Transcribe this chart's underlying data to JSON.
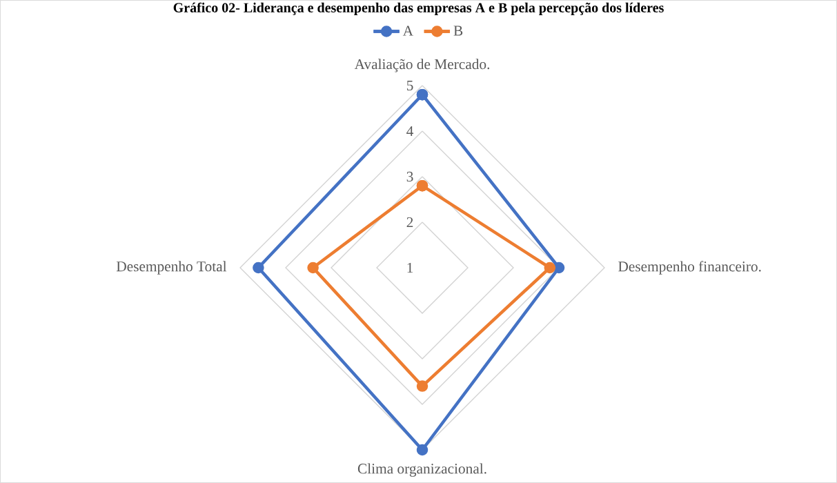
{
  "chart_data": {
    "type": "radar",
    "title": "Gráfico 02- Liderança e desempenho das empresas A e B pela percepção dos líderes",
    "categories": [
      "Avaliação de Mercado.",
      "Desempenho financeiro.",
      "Clima organizacional.",
      "Desempenho Total"
    ],
    "series": [
      {
        "name": "A",
        "color": "#4472c4",
        "values": [
          4.8,
          4.0,
          5.0,
          4.6
        ]
      },
      {
        "name": "B",
        "color": "#ed7d31",
        "values": [
          2.8,
          3.8,
          3.6,
          3.4
        ]
      }
    ],
    "ylim": [
      1,
      5
    ],
    "yticks": [
      1,
      2,
      3,
      4,
      5
    ],
    "grid": true,
    "legend": "top",
    "marker": "circle",
    "line_style": "solid"
  }
}
